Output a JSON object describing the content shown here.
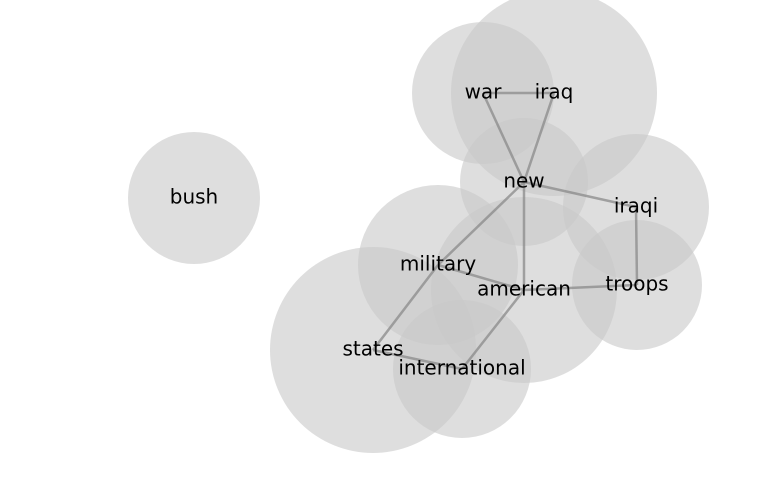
{
  "graph": {
    "nodes": [
      {
        "id": "bush",
        "label": "bush"
      },
      {
        "id": "war",
        "label": "war"
      },
      {
        "id": "iraq",
        "label": "iraq"
      },
      {
        "id": "new",
        "label": "new"
      },
      {
        "id": "iraqi",
        "label": "iraqi"
      },
      {
        "id": "military",
        "label": "military"
      },
      {
        "id": "american",
        "label": "american"
      },
      {
        "id": "troops",
        "label": "troops"
      },
      {
        "id": "states",
        "label": "states"
      },
      {
        "id": "international",
        "label": "international"
      }
    ],
    "edges": [
      {
        "source": "war",
        "target": "iraq"
      },
      {
        "source": "war",
        "target": "new"
      },
      {
        "source": "iraq",
        "target": "new"
      },
      {
        "source": "new",
        "target": "iraqi"
      },
      {
        "source": "new",
        "target": "american"
      },
      {
        "source": "new",
        "target": "military"
      },
      {
        "source": "iraqi",
        "target": "troops"
      },
      {
        "source": "military",
        "target": "american"
      },
      {
        "source": "military",
        "target": "states"
      },
      {
        "source": "american",
        "target": "troops"
      },
      {
        "source": "american",
        "target": "international"
      },
      {
        "source": "states",
        "target": "international"
      }
    ]
  }
}
